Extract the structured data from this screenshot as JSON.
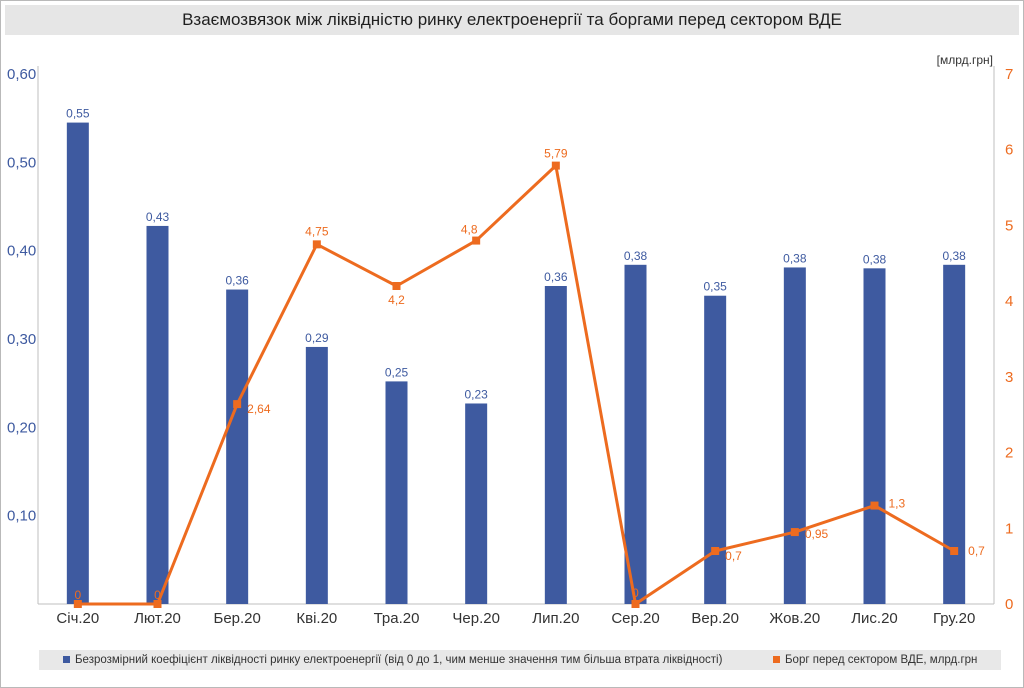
{
  "chart_data": {
    "type": "bar+line",
    "title": "Взаємозвязок між ліквідністю ринку електроенергії та боргами перед сектором ВДЕ",
    "categories": [
      "Січ.20",
      "Лют.20",
      "Бер.20",
      "Кві.20",
      "Тра.20",
      "Чер.20",
      "Лип.20",
      "Сер.20",
      "Вер.20",
      "Жов.20",
      "Лис.20",
      "Гру.20"
    ],
    "series": [
      {
        "name": "Безрозмірний коефіцієнт ліквідності ринку електроенергії (від 0 до 1, чим менше значення тим більша втрата ліквідності)",
        "type": "bar",
        "axis": "left",
        "color": "#3e5aa0",
        "values": [
          0.545,
          0.428,
          0.356,
          0.291,
          0.252,
          0.227,
          0.36,
          0.384,
          0.349,
          0.381,
          0.38,
          0.384
        ],
        "labels": [
          "0,55",
          "0,43",
          "0,36",
          "0,29",
          "0,25",
          "0,23",
          "0,36",
          "0,38",
          "0,35",
          "0,38",
          "0,38",
          "0,38"
        ]
      },
      {
        "name": "Борг перед сектором ВДЕ, млрд.грн",
        "type": "line",
        "axis": "right",
        "color": "#ed6b1f",
        "values": [
          0,
          0,
          2.64,
          4.75,
          4.2,
          4.8,
          5.79,
          0,
          0.7,
          0.95,
          1.3,
          0.7
        ],
        "labels": [
          "0",
          "0",
          "2,64",
          "4,75",
          "4,2",
          "4,8",
          "5,79",
          "0",
          "0,7",
          "0,95",
          "1,3",
          "0,7"
        ]
      }
    ],
    "y_left": {
      "ylim": [
        0,
        0.6
      ],
      "ticks": [
        0.1,
        0.2,
        0.3,
        0.4,
        0.5,
        0.6
      ],
      "tick_labels": [
        "0,10",
        "0,20",
        "0,30",
        "0,40",
        "0,50",
        "0,60"
      ]
    },
    "y_right": {
      "ylim": [
        0,
        7
      ],
      "ticks": [
        0,
        1,
        2,
        3,
        4,
        5,
        6,
        7
      ],
      "tick_labels": [
        "0",
        "1",
        "2",
        "3",
        "4",
        "5",
        "6",
        "7"
      ],
      "unit_label": "[млрд.грн]"
    },
    "grid": false,
    "legend_position": "bottom"
  }
}
